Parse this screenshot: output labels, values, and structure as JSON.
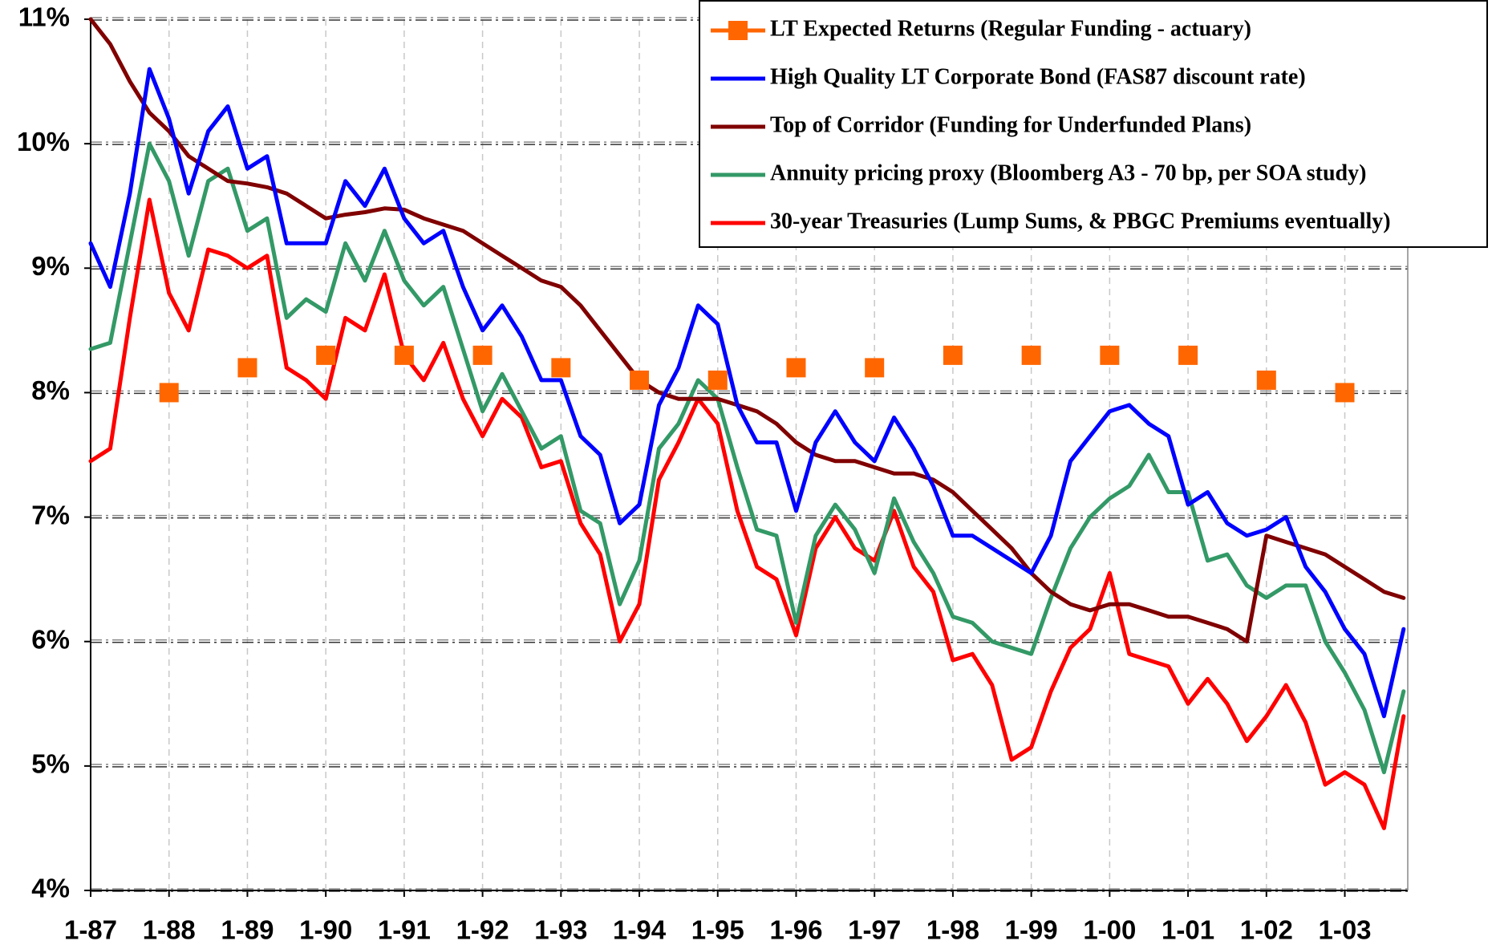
{
  "chart_data": {
    "type": "line",
    "categories": [
      "1-87",
      null,
      null,
      null,
      "1-88",
      null,
      null,
      null,
      "1-89",
      null,
      null,
      null,
      "1-90",
      null,
      null,
      null,
      "1-91",
      null,
      null,
      null,
      "1-92",
      null,
      null,
      null,
      "1-93",
      null,
      null,
      null,
      "1-94",
      null,
      null,
      null,
      "1-95",
      null,
      null,
      null,
      "1-96",
      null,
      null,
      null,
      "1-97",
      null,
      null,
      null,
      "1-98",
      null,
      null,
      null,
      "1-99",
      null,
      null,
      null,
      "1-00",
      null,
      null,
      null,
      "1-01",
      null,
      null,
      null,
      "1-02",
      null,
      null,
      null,
      "1-03",
      null,
      null,
      null
    ],
    "series": [
      {
        "name": "LT Expected Returns (Regular Funding - actuary)",
        "color": "#ff6600",
        "marker": "square",
        "line": false,
        "values": [
          null,
          null,
          null,
          null,
          8.0,
          null,
          null,
          null,
          8.2,
          null,
          null,
          null,
          8.3,
          null,
          null,
          null,
          8.3,
          null,
          null,
          null,
          8.3,
          null,
          null,
          null,
          8.2,
          null,
          null,
          null,
          8.1,
          null,
          null,
          null,
          8.1,
          null,
          null,
          null,
          8.2,
          null,
          null,
          null,
          8.2,
          null,
          null,
          null,
          8.3,
          null,
          null,
          null,
          8.3,
          null,
          null,
          null,
          8.3,
          null,
          null,
          null,
          8.3,
          null,
          null,
          null,
          8.1,
          null,
          null,
          null,
          8.0,
          null,
          null,
          null
        ]
      },
      {
        "name": "High Quality LT Corporate Bond (FAS87 discount rate)",
        "color": "#0000ff",
        "line": true,
        "values": [
          9.2,
          8.85,
          9.6,
          10.6,
          10.2,
          9.6,
          10.1,
          10.3,
          9.8,
          9.9,
          9.2,
          9.2,
          9.2,
          9.7,
          9.5,
          9.8,
          9.4,
          9.2,
          9.3,
          8.85,
          8.5,
          8.7,
          8.45,
          8.1,
          8.1,
          7.65,
          7.5,
          6.95,
          7.1,
          7.9,
          8.2,
          8.7,
          8.55,
          7.9,
          7.6,
          7.6,
          7.05,
          7.6,
          7.85,
          7.6,
          7.45,
          7.8,
          7.55,
          7.25,
          6.85,
          6.85,
          6.75,
          6.65,
          6.55,
          6.85,
          7.45,
          7.65,
          7.85,
          7.9,
          7.75,
          7.65,
          7.1,
          7.2,
          6.95,
          6.85,
          6.9,
          7.0,
          6.6,
          6.4,
          6.1,
          5.9,
          5.4,
          6.1
        ]
      },
      {
        "name": "Top of Corridor (Funding for Underfunded Plans)",
        "color": "#800000",
        "line": true,
        "values": [
          11.0,
          10.8,
          10.5,
          10.25,
          10.1,
          9.9,
          9.8,
          9.7,
          9.68,
          9.65,
          9.6,
          9.5,
          9.4,
          9.43,
          9.45,
          9.48,
          9.47,
          9.4,
          9.35,
          9.3,
          9.2,
          9.1,
          9.0,
          8.9,
          8.85,
          8.7,
          8.5,
          8.3,
          8.1,
          8.0,
          7.95,
          7.95,
          7.95,
          7.9,
          7.85,
          7.75,
          7.6,
          7.5,
          7.45,
          7.45,
          7.4,
          7.35,
          7.35,
          7.3,
          7.2,
          7.05,
          6.9,
          6.75,
          6.55,
          6.4,
          6.3,
          6.25,
          6.3,
          6.3,
          6.25,
          6.2,
          6.2,
          6.15,
          6.1,
          6.0,
          6.85,
          6.8,
          6.75,
          6.7,
          6.6,
          6.5,
          6.4,
          6.35
        ]
      },
      {
        "name": "Annuity pricing proxy (Bloomberg A3 - 70 bp, per SOA study)",
        "color": "#339966",
        "line": true,
        "values": [
          8.35,
          8.4,
          9.2,
          10.0,
          9.7,
          9.1,
          9.7,
          9.8,
          9.3,
          9.4,
          8.6,
          8.75,
          8.65,
          9.2,
          8.9,
          9.3,
          8.9,
          8.7,
          8.85,
          8.35,
          7.85,
          8.15,
          7.85,
          7.55,
          7.65,
          7.05,
          6.95,
          6.3,
          6.65,
          7.55,
          7.75,
          8.1,
          7.95,
          7.4,
          6.9,
          6.85,
          6.15,
          6.85,
          7.1,
          6.9,
          6.55,
          7.15,
          6.8,
          6.55,
          6.2,
          6.15,
          6.0,
          5.95,
          5.9,
          6.35,
          6.75,
          7.0,
          7.15,
          7.25,
          7.5,
          7.2,
          7.2,
          6.65,
          6.7,
          6.45,
          6.35,
          6.45,
          6.45,
          6.0,
          5.75,
          5.45,
          4.95,
          5.6
        ]
      },
      {
        "name": "30-year Treasuries (Lump Sums, & PBGC Premiums eventually)",
        "color": "#ff0000",
        "line": true,
        "values": [
          7.45,
          7.55,
          8.6,
          9.55,
          8.8,
          8.5,
          9.15,
          9.1,
          9.0,
          9.1,
          8.2,
          8.1,
          7.95,
          8.6,
          8.5,
          8.95,
          8.3,
          8.1,
          8.4,
          7.95,
          7.65,
          7.95,
          7.8,
          7.4,
          7.45,
          6.95,
          6.7,
          6.0,
          6.3,
          7.3,
          7.6,
          7.95,
          7.75,
          7.05,
          6.6,
          6.5,
          6.05,
          6.75,
          7.0,
          6.75,
          6.65,
          7.05,
          6.6,
          6.4,
          5.85,
          5.9,
          5.65,
          5.05,
          5.15,
          5.6,
          5.95,
          6.1,
          6.55,
          5.9,
          5.85,
          5.8,
          5.5,
          5.7,
          5.5,
          5.2,
          5.4,
          5.65,
          5.35,
          4.85,
          4.95,
          4.85,
          4.5,
          5.4
        ]
      }
    ],
    "ylim": [
      4,
      11
    ],
    "yticks": [
      {
        "value": 4,
        "label": "4%"
      },
      {
        "value": 5,
        "label": "5%"
      },
      {
        "value": 6,
        "label": "6%"
      },
      {
        "value": 7,
        "label": "7%"
      },
      {
        "value": 8,
        "label": "8%"
      },
      {
        "value": 9,
        "label": "9%"
      },
      {
        "value": 10,
        "label": "10%"
      },
      {
        "value": 11,
        "label": "11%"
      }
    ],
    "grid": true,
    "legend": "upper right"
  }
}
